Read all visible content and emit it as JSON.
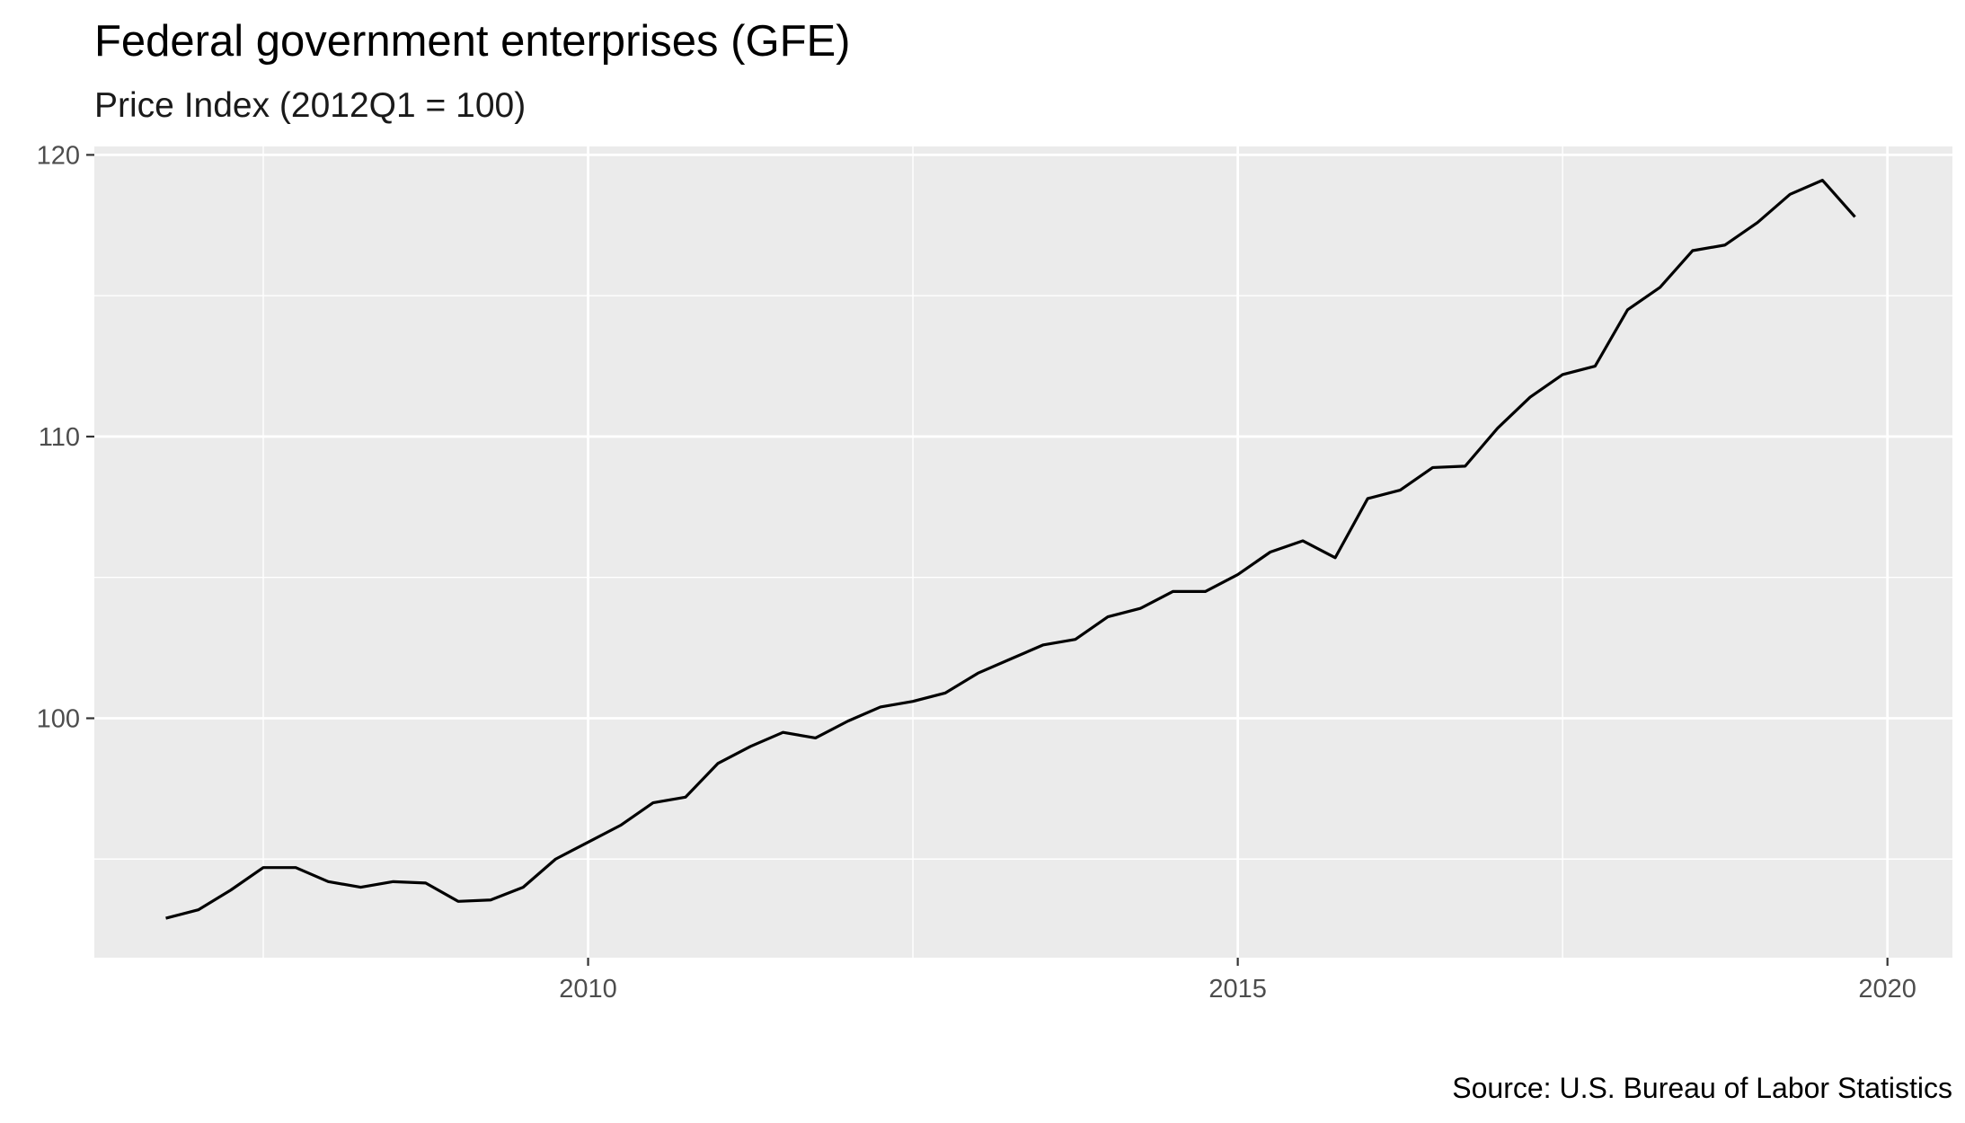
{
  "chart_data": {
    "type": "line",
    "title": "Federal government enterprises (GFE)",
    "subtitle": "Price Index (2012Q1 = 100)",
    "caption": "Source: U.S. Bureau of Labor Statistics",
    "xlabel": "",
    "ylabel": "",
    "xlim": [
      2006.2,
      2020.5
    ],
    "ylim": [
      91.5,
      120.3
    ],
    "x_ticks": [
      2010,
      2015,
      2020
    ],
    "x_tick_labels": [
      "2010",
      "2015",
      "2020"
    ],
    "y_ticks": [
      100,
      110,
      120
    ],
    "y_tick_labels": [
      "100",
      "110",
      "120"
    ],
    "grid": true,
    "legend": "none",
    "series": [
      {
        "color": "#000000",
        "x": [
          2006.75,
          2007.0,
          2007.25,
          2007.5,
          2007.75,
          2008.0,
          2008.25,
          2008.5,
          2008.75,
          2009.0,
          2009.25,
          2009.5,
          2009.75,
          2010.0,
          2010.25,
          2010.5,
          2010.75,
          2011.0,
          2011.25,
          2011.5,
          2011.75,
          2012.0,
          2012.25,
          2012.5,
          2012.75,
          2013.0,
          2013.25,
          2013.5,
          2013.75,
          2014.0,
          2014.25,
          2014.5,
          2014.75,
          2015.0,
          2015.25,
          2015.5,
          2015.75,
          2016.0,
          2016.25,
          2016.5,
          2016.75,
          2017.0,
          2017.25,
          2017.5,
          2017.75,
          2018.0,
          2018.25,
          2018.5,
          2018.75,
          2019.0,
          2019.25,
          2019.5,
          2019.75
        ],
        "y": [
          92.9,
          93.2,
          93.9,
          94.7,
          94.7,
          94.2,
          94.0,
          94.2,
          94.15,
          93.5,
          93.55,
          94.0,
          95.0,
          95.6,
          96.2,
          97.0,
          97.2,
          98.4,
          99.0,
          99.5,
          99.3,
          99.9,
          100.4,
          100.6,
          100.9,
          101.6,
          102.1,
          102.6,
          102.8,
          103.6,
          103.9,
          104.5,
          104.5,
          105.1,
          105.9,
          106.3,
          105.7,
          107.8,
          108.1,
          108.9,
          108.95,
          110.3,
          111.4,
          112.2,
          112.5,
          114.5,
          115.3,
          116.6,
          116.8,
          117.6,
          118.6,
          119.1,
          117.8
        ]
      }
    ]
  }
}
